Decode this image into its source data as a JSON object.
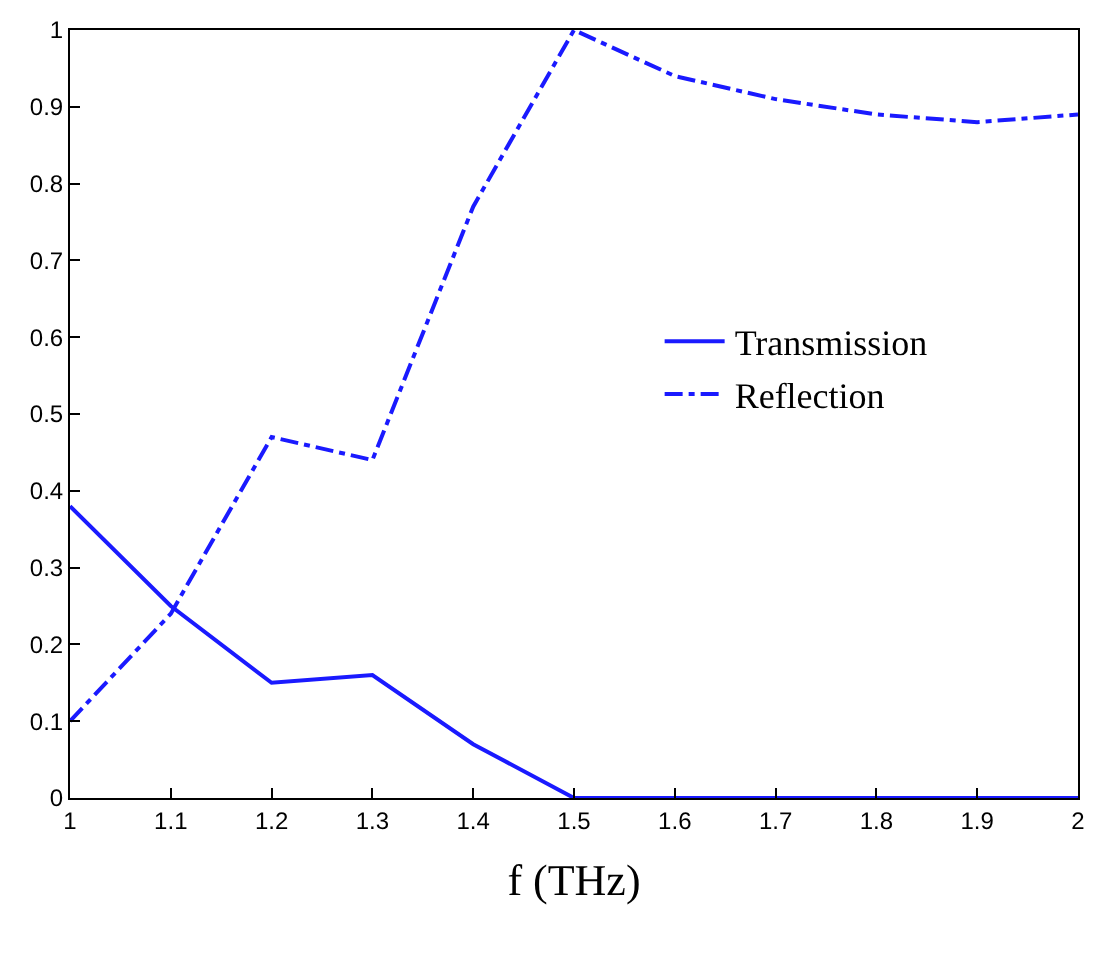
{
  "chart_data": {
    "type": "line",
    "xlabel": "f (THz)",
    "x": [
      1,
      1.1,
      1.2,
      1.3,
      1.4,
      1.5,
      1.6,
      1.7,
      1.8,
      1.9,
      2.0
    ],
    "series": [
      {
        "name": "Transmission",
        "color": "#1a1aff",
        "line_style": "solid",
        "values": [
          0.38,
          0.25,
          0.15,
          0.16,
          0.07,
          0.0,
          0.0,
          0.0,
          0.0,
          0.0,
          0.0
        ]
      },
      {
        "name": "Reflection",
        "color": "#1a1aff",
        "line_style": "dashed",
        "values": [
          0.1,
          0.24,
          0.47,
          0.44,
          0.77,
          1.0,
          0.94,
          0.91,
          0.89,
          0.88,
          0.89
        ]
      }
    ],
    "xlim": [
      1,
      2
    ],
    "xticks": [
      1,
      1.1,
      1.2,
      1.3,
      1.4,
      1.5,
      1.6,
      1.7,
      1.8,
      1.9,
      2
    ],
    "ylim": [
      0,
      1
    ],
    "yticks": [
      0,
      0.1,
      0.2,
      0.3,
      0.4,
      0.5,
      0.6,
      0.7,
      0.8,
      0.9,
      1
    ],
    "legend": "right",
    "marker": "none"
  }
}
